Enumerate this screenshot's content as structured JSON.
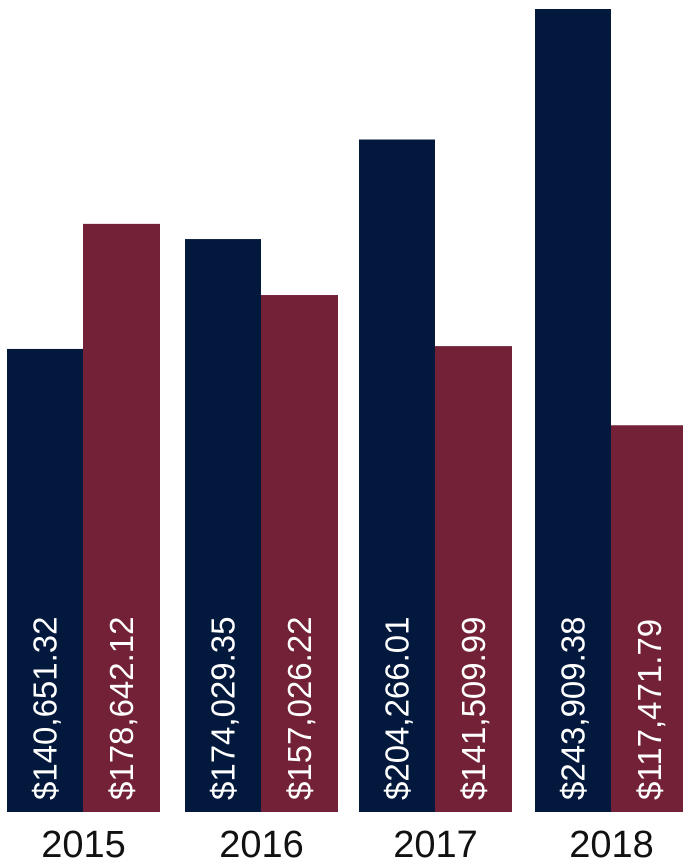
{
  "chart_data": {
    "type": "bar",
    "title": "",
    "xlabel": "",
    "ylabel": "",
    "categories": [
      "2015",
      "2016",
      "2017",
      "2018"
    ],
    "ylim": [
      0,
      250000
    ],
    "series": [
      {
        "color": "#03183d",
        "values": [
          140651.32,
          174029.35,
          204266.01,
          243909.38
        ],
        "labels": [
          "$140,651.32",
          "$174,029.35",
          "$204,266.01",
          "$243,909.38"
        ]
      },
      {
        "color": "#722136",
        "values": [
          178642.12,
          157026.22,
          141509.99,
          117471.79
        ],
        "labels": [
          "$178,642.12",
          "$157,026.22",
          "$141,509.99",
          "$117,471.79"
        ]
      }
    ],
    "grid": false,
    "legend": "none"
  }
}
